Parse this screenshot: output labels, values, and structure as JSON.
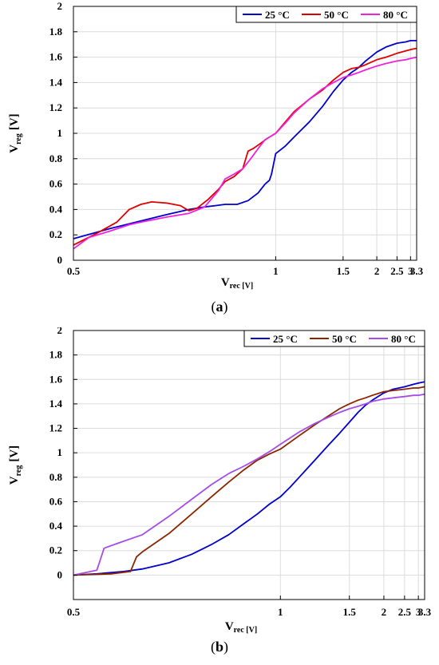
{
  "chart_data": [
    {
      "type": "line",
      "caption": "(a)",
      "xlabel": {
        "main": "V",
        "sub": "rec [V]"
      },
      "ylabel": {
        "main": "V",
        "sub": "reg",
        "unit": "[V]"
      },
      "xlim": [
        0.5,
        3.3
      ],
      "ylim": [
        0,
        2
      ],
      "x_scale": "reciprocal",
      "xticks": [
        {
          "v": 0.5,
          "label": "0.5"
        },
        {
          "v": 1,
          "label": "1"
        },
        {
          "v": 1.5,
          "label": "1.5"
        },
        {
          "v": 2,
          "label": "2"
        },
        {
          "v": 2.5,
          "label": "2.5"
        },
        {
          "v": 3,
          "label": "3"
        },
        {
          "v": 3.3,
          "label": "3.3"
        }
      ],
      "yticks": [
        {
          "v": 0,
          "label": "0"
        },
        {
          "v": 0.2,
          "label": "0.2"
        },
        {
          "v": 0.4,
          "label": "0.4"
        },
        {
          "v": 0.6,
          "label": "0.6"
        },
        {
          "v": 0.8,
          "label": "0.8"
        },
        {
          "v": 1,
          "label": "1"
        },
        {
          "v": 1.2,
          "label": "1.2"
        },
        {
          "v": 1.4,
          "label": "1.4"
        },
        {
          "v": 1.6,
          "label": "1.6"
        },
        {
          "v": 1.8,
          "label": "1.8"
        },
        {
          "v": 2,
          "label": "2"
        }
      ],
      "grid": true,
      "legend_position": "top-right",
      "series": [
        {
          "name": "25 °C",
          "color": "#0000cc",
          "x": [
            0.5,
            0.55,
            0.6,
            0.65,
            0.7,
            0.74,
            0.77,
            0.8,
            0.84,
            0.88,
            0.92,
            0.95,
            0.97,
            0.98,
            1.0,
            1.05,
            1.1,
            1.2,
            1.3,
            1.4,
            1.5,
            1.6,
            1.65,
            1.7,
            1.8,
            2.0,
            2.2,
            2.5,
            2.8,
            3.0,
            3.3
          ],
          "y": [
            0.17,
            0.25,
            0.31,
            0.36,
            0.4,
            0.42,
            0.43,
            0.44,
            0.44,
            0.47,
            0.53,
            0.6,
            0.63,
            0.68,
            0.84,
            0.9,
            0.97,
            1.09,
            1.21,
            1.33,
            1.42,
            1.48,
            1.5,
            1.52,
            1.57,
            1.64,
            1.68,
            1.71,
            1.72,
            1.73,
            1.73
          ]
        },
        {
          "name": "50 °C",
          "color": "#e00000",
          "x": [
            0.5,
            0.53,
            0.56,
            0.58,
            0.6,
            0.62,
            0.65,
            0.68,
            0.7,
            0.72,
            0.75,
            0.78,
            0.8,
            0.83,
            0.86,
            0.88,
            0.9,
            0.93,
            0.96,
            1.0,
            1.05,
            1.1,
            1.2,
            1.3,
            1.4,
            1.5,
            1.6,
            1.7,
            1.8,
            2.0,
            2.2,
            2.5,
            2.8,
            3.0,
            3.3
          ],
          "y": [
            0.12,
            0.21,
            0.3,
            0.4,
            0.44,
            0.46,
            0.45,
            0.43,
            0.39,
            0.41,
            0.48,
            0.56,
            0.62,
            0.66,
            0.72,
            0.86,
            0.88,
            0.92,
            0.96,
            1.0,
            1.09,
            1.17,
            1.27,
            1.34,
            1.42,
            1.48,
            1.51,
            1.52,
            1.54,
            1.58,
            1.6,
            1.63,
            1.65,
            1.66,
            1.67
          ]
        },
        {
          "name": "80 °C",
          "color": "#ee22dd",
          "x": [
            0.5,
            0.52,
            0.55,
            0.58,
            0.6,
            0.65,
            0.7,
            0.74,
            0.78,
            0.8,
            0.83,
            0.86,
            0.89,
            0.92,
            0.95,
            1.0,
            1.05,
            1.1,
            1.2,
            1.3,
            1.4,
            1.5,
            1.6,
            1.7,
            1.8,
            2.0,
            2.2,
            2.5,
            2.8,
            3.0,
            3.3
          ],
          "y": [
            0.09,
            0.18,
            0.23,
            0.28,
            0.3,
            0.34,
            0.37,
            0.42,
            0.55,
            0.64,
            0.68,
            0.72,
            0.8,
            0.88,
            0.95,
            1.0,
            1.08,
            1.16,
            1.27,
            1.35,
            1.4,
            1.44,
            1.46,
            1.48,
            1.5,
            1.53,
            1.55,
            1.57,
            1.58,
            1.59,
            1.6
          ]
        }
      ]
    },
    {
      "type": "line",
      "caption": "(b)",
      "xlabel": {
        "main": "V",
        "sub": "rec [V]"
      },
      "ylabel": {
        "main": "V",
        "sub": "reg",
        "unit": "[V]"
      },
      "xlim": [
        0.5,
        3.3
      ],
      "ylim": [
        -0.2,
        2
      ],
      "x_scale": "reciprocal",
      "xticks": [
        {
          "v": 0.5,
          "label": "0.5"
        },
        {
          "v": 1,
          "label": "1"
        },
        {
          "v": 1.5,
          "label": "1.5"
        },
        {
          "v": 2,
          "label": "2"
        },
        {
          "v": 2.5,
          "label": "2.5"
        },
        {
          "v": 3,
          "label": "3"
        },
        {
          "v": 3.3,
          "label": "3.3"
        }
      ],
      "yticks": [
        {
          "v": 0,
          "label": "0"
        },
        {
          "v": 0.2,
          "label": "0.2"
        },
        {
          "v": 0.4,
          "label": "0.4"
        },
        {
          "v": 0.6,
          "label": "0.6"
        },
        {
          "v": 0.8,
          "label": "0.8"
        },
        {
          "v": 1,
          "label": "1"
        },
        {
          "v": 1.2,
          "label": "1.2"
        },
        {
          "v": 1.4,
          "label": "1.4"
        },
        {
          "v": 1.6,
          "label": "1.6"
        },
        {
          "v": 1.8,
          "label": "1.8"
        },
        {
          "v": 2,
          "label": "2"
        }
      ],
      "grid": true,
      "legend_position": "top-right",
      "series": [
        {
          "name": "25 °C",
          "color": "#0000cc",
          "x": [
            0.5,
            0.53,
            0.57,
            0.6,
            0.65,
            0.7,
            0.75,
            0.8,
            0.85,
            0.9,
            0.95,
            1.0,
            1.05,
            1.1,
            1.2,
            1.3,
            1.4,
            1.5,
            1.6,
            1.7,
            1.8,
            2.0,
            2.2,
            2.5,
            2.8,
            3.0,
            3.3
          ],
          "y": [
            0.0,
            0.01,
            0.03,
            0.05,
            0.1,
            0.17,
            0.25,
            0.33,
            0.42,
            0.5,
            0.58,
            0.64,
            0.72,
            0.8,
            0.94,
            1.06,
            1.16,
            1.25,
            1.33,
            1.39,
            1.43,
            1.49,
            1.52,
            1.54,
            1.56,
            1.57,
            1.58
          ]
        },
        {
          "name": "50 °C",
          "color": "#8b2500",
          "x": [
            0.5,
            0.55,
            0.58,
            0.59,
            0.6,
            0.65,
            0.7,
            0.75,
            0.8,
            0.85,
            0.9,
            0.95,
            1.0,
            1.1,
            1.2,
            1.3,
            1.4,
            1.5,
            1.6,
            1.7,
            1.8,
            2.0,
            2.2,
            2.5,
            2.8,
            3.0,
            3.3
          ],
          "y": [
            0.0,
            0.01,
            0.03,
            0.15,
            0.19,
            0.34,
            0.5,
            0.64,
            0.76,
            0.86,
            0.94,
            0.99,
            1.03,
            1.14,
            1.23,
            1.3,
            1.36,
            1.4,
            1.43,
            1.45,
            1.47,
            1.5,
            1.51,
            1.52,
            1.53,
            1.53,
            1.54
          ]
        },
        {
          "name": "80 °C",
          "color": "#a64ce8",
          "x": [
            0.5,
            0.53,
            0.54,
            0.56,
            0.6,
            0.65,
            0.7,
            0.75,
            0.8,
            0.85,
            0.9,
            0.95,
            1.0,
            1.1,
            1.2,
            1.3,
            1.4,
            1.5,
            1.6,
            1.7,
            1.8,
            2.0,
            2.2,
            2.5,
            2.8,
            3.0,
            3.3
          ],
          "y": [
            0.0,
            0.04,
            0.22,
            0.26,
            0.33,
            0.48,
            0.62,
            0.74,
            0.83,
            0.89,
            0.95,
            1.01,
            1.07,
            1.17,
            1.24,
            1.29,
            1.33,
            1.36,
            1.38,
            1.4,
            1.42,
            1.44,
            1.45,
            1.46,
            1.47,
            1.47,
            1.48
          ]
        }
      ]
    }
  ]
}
